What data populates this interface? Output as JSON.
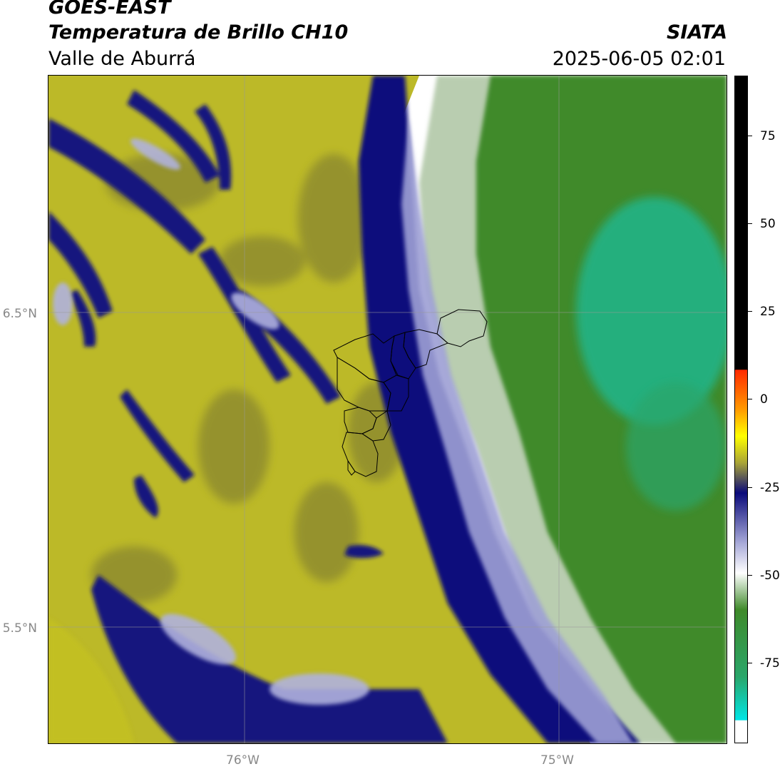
{
  "header": {
    "satellite": "GOES-EAST",
    "product": "Temperatura de Brillo CH10",
    "region": "Valle de Aburrá",
    "agency": "SIATA",
    "datetime": "2025-06-05 02:01"
  },
  "axes": {
    "lat_ticks": [
      "6.5°N",
      "5.5°N"
    ],
    "lon_ticks": [
      "76°W",
      "75°W"
    ]
  },
  "colorbar": {
    "ticks": [
      "75",
      "50",
      "25",
      "0",
      "-25",
      "-50",
      "-75"
    ],
    "colors": {
      "black": "#000000",
      "red": "#ff2a00",
      "orange": "#ff9a00",
      "yellow": "#ffff00",
      "olive": "#c2bf22",
      "navy": "#0a0a7a",
      "lavender": "#a7a9d8",
      "white": "#ffffff",
      "green": "#3f8a2a",
      "teal": "#1fb896",
      "cyan": "#00e5e5"
    }
  }
}
